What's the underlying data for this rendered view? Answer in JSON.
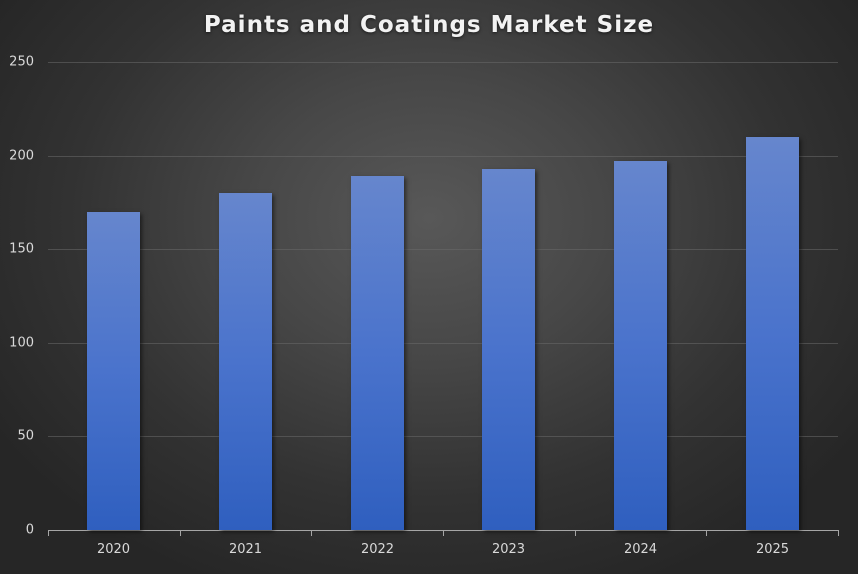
{
  "chart_data": {
    "type": "bar",
    "title": "Paints and Coatings Market Size",
    "categories": [
      "2020",
      "2021",
      "2022",
      "2023",
      "2024",
      "2025"
    ],
    "values": [
      170,
      180,
      189,
      193,
      197,
      210
    ],
    "xlabel": "",
    "ylabel": "",
    "ylim": [
      0,
      250
    ],
    "yticks": [
      0,
      50,
      100,
      150,
      200,
      250
    ],
    "grid": true,
    "legend": null,
    "colors": {
      "bar_top": "#6686cd",
      "bar_bottom": "#2f5fbf",
      "background_center": "#585858",
      "background_edge": "#262626",
      "text": "#d9d9d9"
    }
  },
  "yticks_labels": [
    "0",
    "50",
    "100",
    "150",
    "200",
    "250"
  ]
}
